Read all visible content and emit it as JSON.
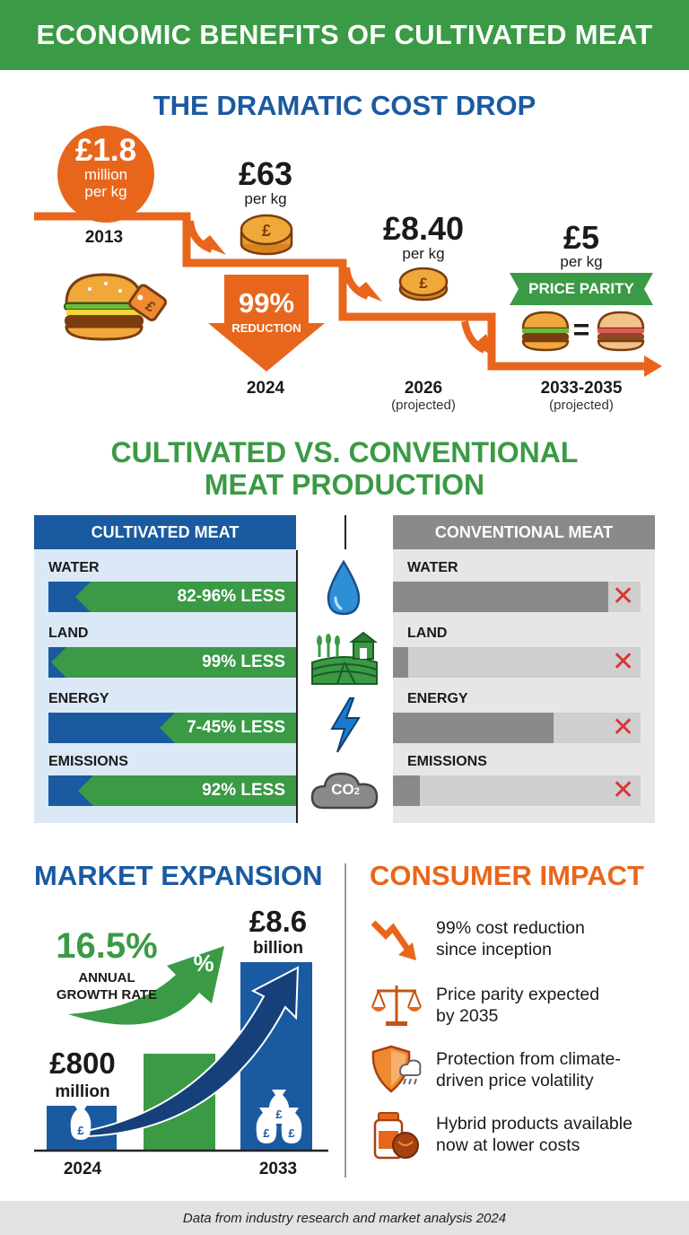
{
  "header": {
    "title": "ECONOMIC BENEFITS OF CULTIVATED MEAT"
  },
  "cost_drop": {
    "title": "THE DRAMATIC COST DROP",
    "p2013": {
      "price": "£1.8",
      "unit": "million per kg",
      "unit_l1": "million",
      "unit_l2": "per kg",
      "year": "2013"
    },
    "p2024": {
      "price": "£63",
      "unit": "per kg",
      "year": "2024",
      "reduction_pct": "99%",
      "reduction_label": "REDUCTION"
    },
    "p2026": {
      "price": "£8.40",
      "unit": "per kg",
      "year": "2026",
      "note": "(projected)"
    },
    "p2033": {
      "price": "£5",
      "unit": "per kg",
      "year": "2033-2035",
      "note": "(projected)",
      "badge": "PRICE PARITY",
      "equals": "="
    }
  },
  "comparison": {
    "title_l1": "CULTIVATED VS. CONVENTIONAL",
    "title_l2": "MEAT PRODUCTION",
    "cultivated_header": "CULTIVATED MEAT",
    "conventional_header": "CONVENTIONAL MEAT",
    "metrics": [
      {
        "label": "WATER",
        "value": "82-96% LESS",
        "cultivated_level": 0.89,
        "conventional_level": 0.87,
        "icon": "water-drop-icon"
      },
      {
        "label": "LAND",
        "value": "99% LESS",
        "cultivated_level": 0.99,
        "conventional_level": 0.06,
        "icon": "farmland-icon"
      },
      {
        "label": "ENERGY",
        "value": "7-45% LESS",
        "cultivated_level": 0.55,
        "conventional_level": 0.65,
        "icon": "lightning-icon"
      },
      {
        "label": "EMISSIONS",
        "value": "92% LESS",
        "cultivated_level": 0.88,
        "conventional_level": 0.11,
        "icon": "co2-cloud-icon"
      }
    ],
    "co2_label": "CO",
    "co2_sub": "2"
  },
  "market": {
    "title": "MARKET EXPANSION",
    "growth_rate": "16.5%",
    "growth_label_l1": "ANNUAL",
    "growth_label_l2": "GROWTH RATE",
    "percent_symbol": "%",
    "start_value": "£800",
    "start_unit": "million",
    "start_year": "2024",
    "end_value": "£8.6",
    "end_unit": "billion",
    "end_year": "2033",
    "currency_symbol": "£"
  },
  "consumer": {
    "title": "CONSUMER IMPACT",
    "items": [
      {
        "l1": "99% cost reduction",
        "l2": "since inception",
        "icon": "down-trend-arrow-icon"
      },
      {
        "l1": "Price parity expected",
        "l2": "by 2035",
        "icon": "balance-scale-icon"
      },
      {
        "l1": "Protection from climate-",
        "l2": "driven price volatility",
        "icon": "shield-weather-icon"
      },
      {
        "l1": "Hybrid products available",
        "l2": "now at lower costs",
        "icon": "jar-product-icon"
      }
    ]
  },
  "colors": {
    "green": "#3a9a45",
    "blue": "#1a5aa0",
    "orange": "#e8661c",
    "gray": "#8a8a8a",
    "red": "#d93535"
  },
  "footer": {
    "text": "Data from industry research and market analysis 2024"
  }
}
